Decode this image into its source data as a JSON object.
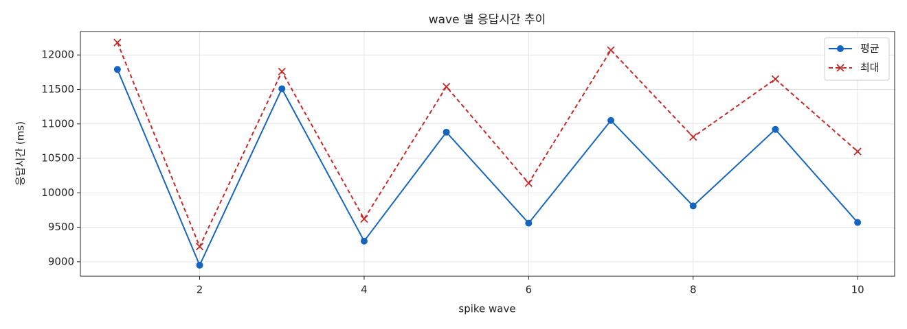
{
  "chart_data": {
    "type": "line",
    "title": "wave 별 응답시간 추이",
    "x_label": "spike wave",
    "y_label": "응답시간 (ms)",
    "x": [
      1,
      2,
      3,
      4,
      5,
      6,
      7,
      8,
      9,
      10
    ],
    "series": [
      {
        "name": "평균",
        "color": "#1565c0",
        "marker": "o",
        "linestyle": "solid",
        "values": [
          11790,
          8950,
          11510,
          9300,
          10880,
          9560,
          11050,
          9810,
          10920,
          9570
        ]
      },
      {
        "name": "최대",
        "color": "#c62828",
        "marker": "x",
        "linestyle": "dashed",
        "values": [
          12180,
          9220,
          11760,
          9620,
          11540,
          10140,
          12070,
          10810,
          11650,
          10600
        ]
      }
    ],
    "xlim": [
      0.55,
      10.45
    ],
    "ylim": [
      8790,
      12340
    ],
    "xticks": [
      2,
      4,
      6,
      8,
      10
    ],
    "yticks": [
      9000,
      9500,
      10000,
      10500,
      11000,
      11500,
      12000
    ],
    "grid": true,
    "legend": "upper right"
  }
}
